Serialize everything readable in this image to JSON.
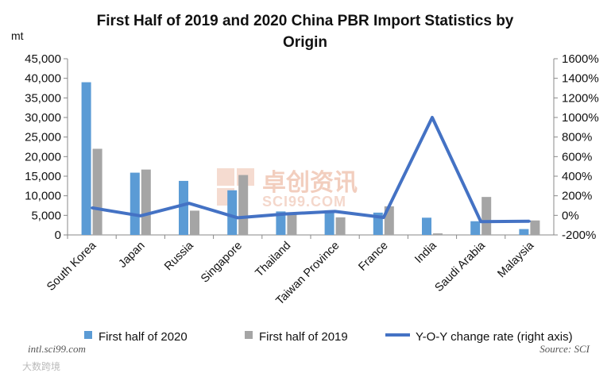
{
  "chart_data": {
    "type": "bar",
    "title_lines": [
      "First Half of 2019 and 2020 China PBR Import Statistics by",
      "Origin"
    ],
    "ylabel": "mt",
    "categories": [
      "South Korea",
      "Japan",
      "Russia",
      "Singapore",
      "Thailand",
      "Taiwan Province",
      "France",
      "India",
      "Saudi Arabia",
      "Malaysia"
    ],
    "series": [
      {
        "name": "First half of 2020",
        "kind": "bar",
        "axis": "left",
        "color": "#5b9bd5",
        "values": [
          39000,
          15900,
          13800,
          11400,
          6000,
          6300,
          5700,
          4400,
          3500,
          1500
        ]
      },
      {
        "name": "First half of 2019",
        "kind": "bar",
        "axis": "left",
        "color": "#a5a5a5",
        "values": [
          22000,
          16700,
          6200,
          15300,
          5200,
          4500,
          7300,
          400,
          9700,
          3700
        ]
      },
      {
        "name": "Y-O-Y change rate (right axis)",
        "kind": "line",
        "axis": "right",
        "color": "#4472c4",
        "unit": "%",
        "values": [
          77,
          -5,
          123,
          -25,
          15,
          40,
          -22,
          1000,
          -64,
          -60
        ]
      }
    ],
    "ylim_left": [
      0,
      45000
    ],
    "yticks_left": [
      "45,000",
      "40,000",
      "35,000",
      "30,000",
      "25,000",
      "20,000",
      "15,000",
      "10,000",
      "5,000",
      "0"
    ],
    "ylim_right": [
      -200,
      1600
    ],
    "yticks_right": [
      "1600%",
      "1400%",
      "1200%",
      "1000%",
      "800%",
      "600%",
      "400%",
      "200%",
      "0%",
      "-200%"
    ],
    "legend_position": "bottom"
  },
  "watermark": {
    "text": "卓创资讯",
    "sub": "SCI99.COM"
  },
  "footer": {
    "left": "intl.sci99.com",
    "right": "Source: SCI",
    "corner": "大数跨境"
  }
}
